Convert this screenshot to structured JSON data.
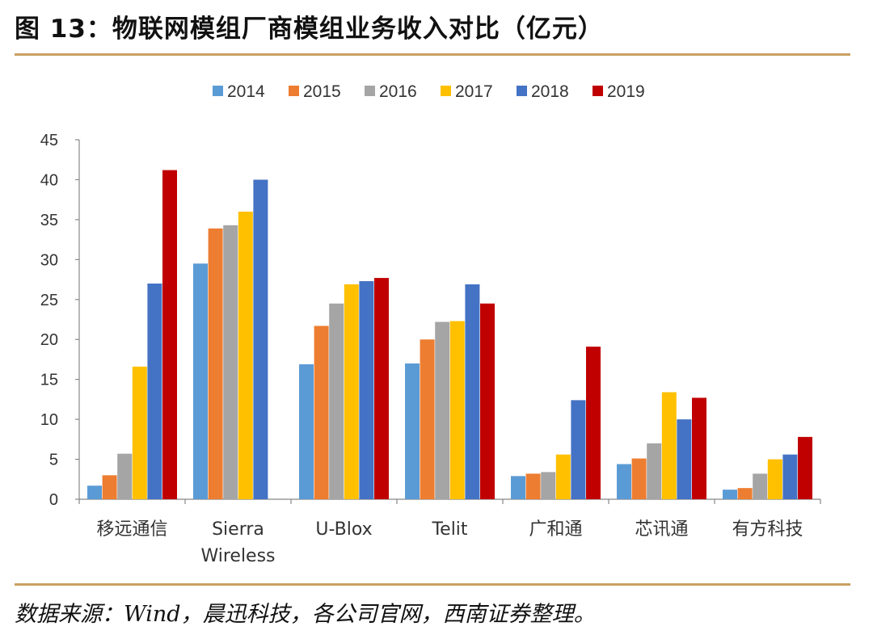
{
  "header": {
    "title": "图 13：物联网模组厂商模组业务收入对比（亿元）"
  },
  "footer": {
    "source": "数据来源：Wind，晨迅科技，各公司官网，西南证券整理。"
  },
  "chart_data": {
    "type": "bar",
    "title": "物联网模组厂商模组业务收入对比（亿元）",
    "xlabel": "",
    "ylabel": "",
    "ylim": [
      0,
      45
    ],
    "yticks": [
      0,
      5,
      10,
      15,
      20,
      25,
      30,
      35,
      40,
      45
    ],
    "legend_position": "top-center",
    "categories": [
      [
        "移远通信"
      ],
      [
        "Sierra",
        "Wireless"
      ],
      [
        "U-Blox"
      ],
      [
        "Telit"
      ],
      [
        "广和通"
      ],
      [
        "芯讯通"
      ],
      [
        "有方科技"
      ]
    ],
    "series": [
      {
        "name": "2014",
        "color": "#5b9bd5",
        "values": [
          1.7,
          29.5,
          16.9,
          17.0,
          2.9,
          4.4,
          1.2
        ]
      },
      {
        "name": "2015",
        "color": "#ed7d31",
        "values": [
          3.0,
          33.9,
          21.7,
          20.0,
          3.2,
          5.1,
          1.4
        ]
      },
      {
        "name": "2016",
        "color": "#a5a5a5",
        "values": [
          5.7,
          34.3,
          24.5,
          22.2,
          3.4,
          7.0,
          3.2
        ]
      },
      {
        "name": "2017",
        "color": "#ffc000",
        "values": [
          16.6,
          36.0,
          26.9,
          22.3,
          5.6,
          13.4,
          5.0
        ]
      },
      {
        "name": "2018",
        "color": "#4472c4",
        "values": [
          27.0,
          40.0,
          27.3,
          26.9,
          12.4,
          10.0,
          5.6
        ]
      },
      {
        "name": "2019",
        "color": "#c00000",
        "values": [
          41.2,
          null,
          27.7,
          24.5,
          19.1,
          12.7,
          7.8
        ]
      }
    ]
  }
}
